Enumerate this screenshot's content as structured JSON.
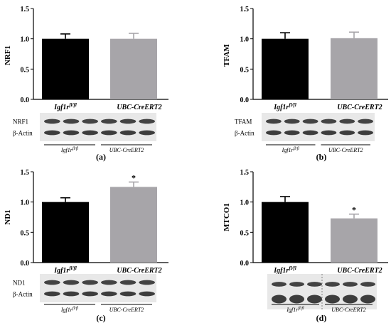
{
  "chart_data": [
    {
      "type": "bar",
      "panel_label": "(a)",
      "ylabel": "NRF1",
      "ylim": [
        0,
        1.5
      ],
      "yticks": [
        "0.0",
        "0.5",
        "1.0",
        "1.5"
      ],
      "categories": [
        "Igf1r",
        "UBC-CreERT2"
      ],
      "category_superscripts": [
        "fl/fl",
        ""
      ],
      "values": [
        1.0,
        1.0
      ],
      "errors": [
        0.08,
        0.09
      ],
      "significance": [
        "",
        ""
      ],
      "bar_colors": [
        "#000000",
        "#a7a5a9"
      ],
      "blot": {
        "rows": [
          "NRF1",
          "β-Actin"
        ],
        "groups": [
          "Igf1r",
          "UBC-CreERT2"
        ],
        "group_superscripts": [
          "fl/fl",
          ""
        ]
      }
    },
    {
      "type": "bar",
      "panel_label": "(b)",
      "ylabel": "TFAM",
      "ylim": [
        0,
        1.5
      ],
      "yticks": [
        "0.0",
        "0.5",
        "1.0",
        "1.5"
      ],
      "categories": [
        "Igf1r",
        "UBC-CreERT2"
      ],
      "category_superscripts": [
        "fl/fl",
        ""
      ],
      "values": [
        1.0,
        1.01
      ],
      "errors": [
        0.1,
        0.1
      ],
      "significance": [
        "",
        ""
      ],
      "bar_colors": [
        "#000000",
        "#a7a5a9"
      ],
      "blot": {
        "rows": [
          "TFAM",
          "β-Actin"
        ],
        "groups": [
          "Igf1r",
          "UBC-CreERT2"
        ],
        "group_superscripts": [
          "fl/fl",
          ""
        ]
      }
    },
    {
      "type": "bar",
      "panel_label": "(c)",
      "ylabel": "ND1",
      "ylim": [
        0,
        1.5
      ],
      "yticks": [
        "0.0",
        "0.5",
        "1.0",
        "1.5"
      ],
      "categories": [
        "Igf1r",
        "UBC-CreERT2"
      ],
      "category_superscripts": [
        "fl/fl",
        ""
      ],
      "values": [
        1.0,
        1.25
      ],
      "errors": [
        0.07,
        0.08
      ],
      "significance": [
        "",
        "*"
      ],
      "bar_colors": [
        "#000000",
        "#a7a5a9"
      ],
      "blot": {
        "rows": [
          "ND1",
          "β-Actin"
        ],
        "groups": [
          "Igf1r",
          "UBC-CreERT2"
        ],
        "group_superscripts": [
          "fl/fl",
          ""
        ]
      }
    },
    {
      "type": "bar",
      "panel_label": "(d)",
      "ylabel": "MTCO1",
      "ylim": [
        0,
        1.5
      ],
      "yticks": [
        "0.0",
        "0.5",
        "1.0",
        "1.5"
      ],
      "categories": [
        "Igf1r",
        "UBC-CreERT2"
      ],
      "category_superscripts": [
        "fl/fl",
        ""
      ],
      "values": [
        1.0,
        0.73
      ],
      "errors": [
        0.09,
        0.07
      ],
      "significance": [
        "",
        "*"
      ],
      "bar_colors": [
        "#000000",
        "#a7a5a9"
      ],
      "blot": {
        "rows": [
          "",
          ""
        ],
        "groups": [
          "Igf1r",
          "UBC-CreERT2"
        ],
        "group_superscripts": [
          "fl/fl",
          ""
        ]
      }
    }
  ]
}
